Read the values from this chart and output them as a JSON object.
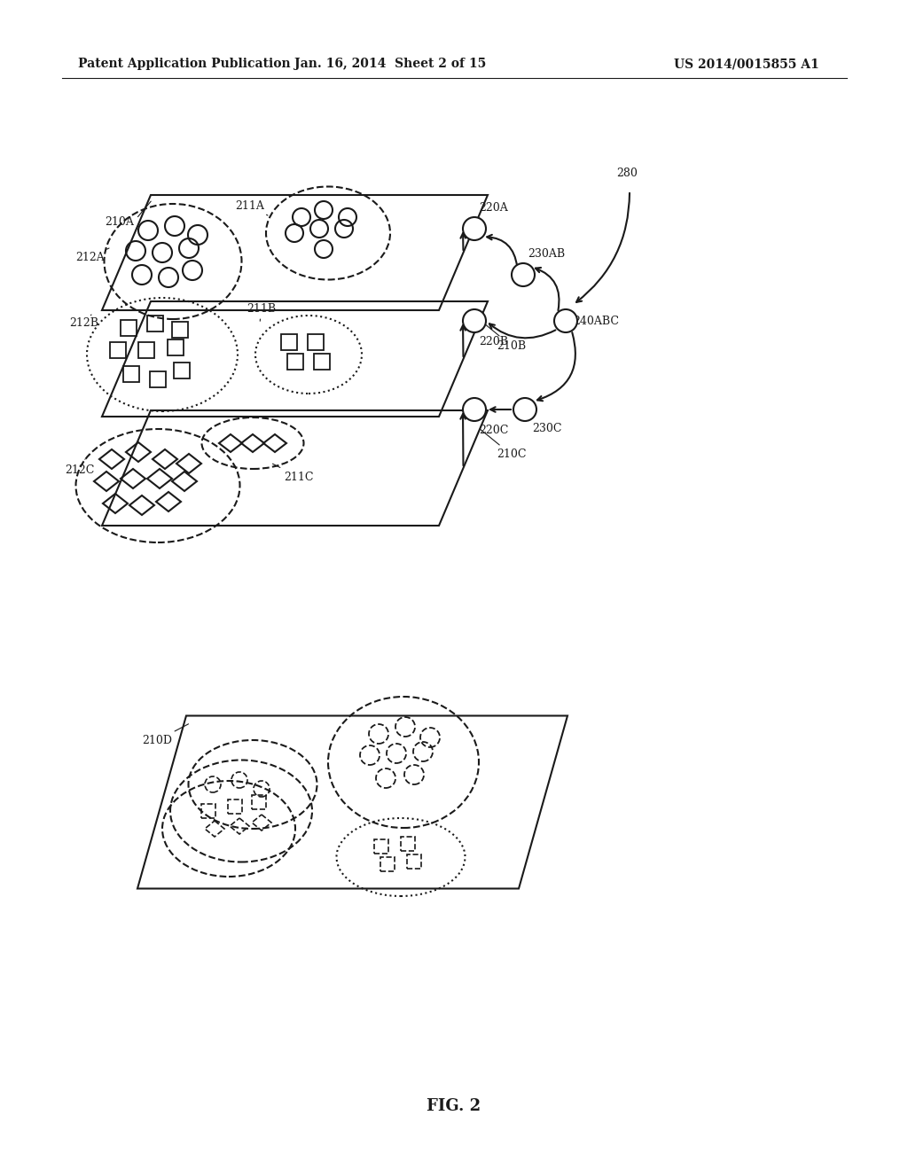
{
  "header_left": "Patent Application Publication",
  "header_center": "Jan. 16, 2014  Sheet 2 of 15",
  "header_right": "US 2014/0015855 A1",
  "figure_label": "FIG. 2",
  "bg_color": "#ffffff",
  "line_color": "#1a1a1a",
  "label_fontsize": 9,
  "header_fontsize": 10
}
